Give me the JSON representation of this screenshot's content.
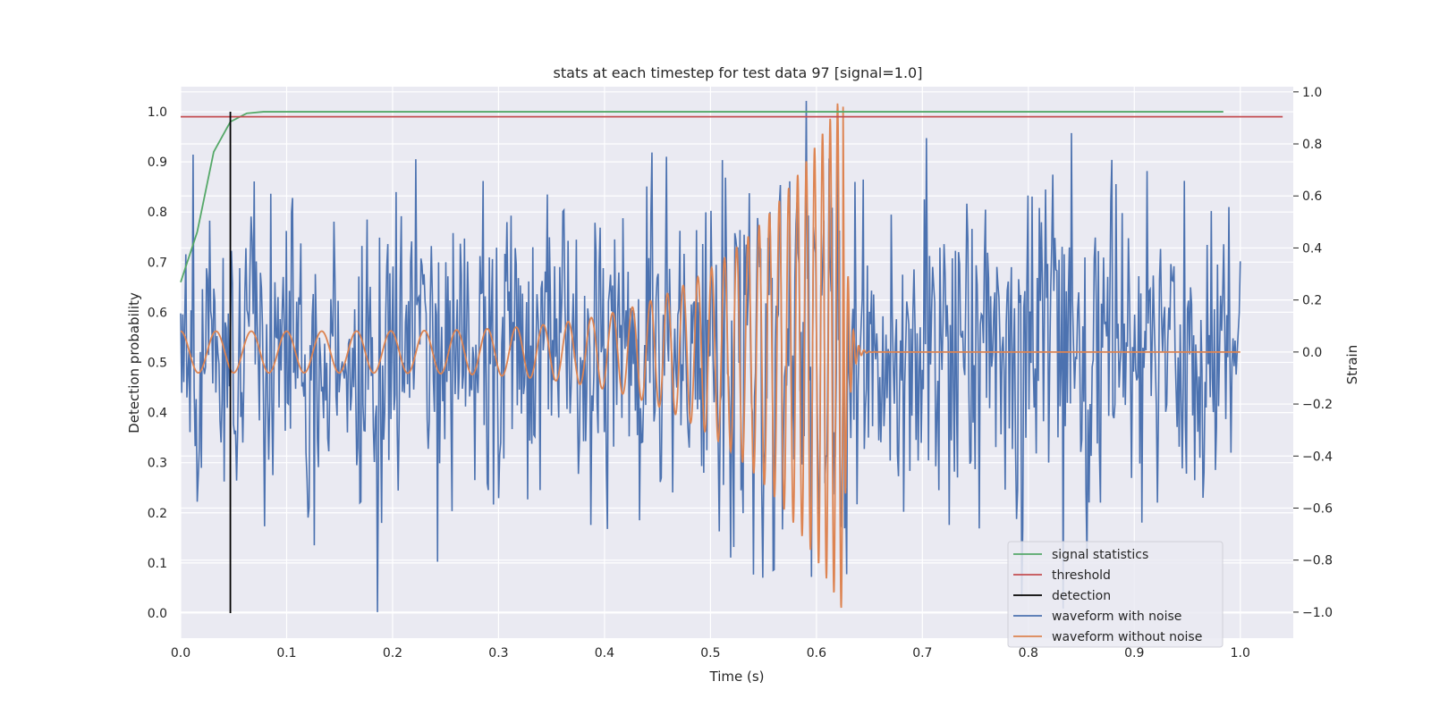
{
  "chart_data": {
    "type": "line",
    "title": "stats at each timestep for test data 97 [signal=1.0]",
    "xlabel": "Time (s)",
    "ylabel_left": "Detection probability",
    "ylabel_right": "Strain",
    "xlim": [
      0.0,
      1.05
    ],
    "ylim_left": [
      -0.05,
      1.05
    ],
    "ylim_right": [
      -1.1,
      1.02
    ],
    "x_ticks": [
      "0.0",
      "0.1",
      "0.2",
      "0.3",
      "0.4",
      "0.5",
      "0.6",
      "0.7",
      "0.8",
      "0.9",
      "1.0"
    ],
    "y_left_ticks": [
      "0.0",
      "0.1",
      "0.2",
      "0.3",
      "0.4",
      "0.5",
      "0.6",
      "0.7",
      "0.8",
      "0.9",
      "1.0"
    ],
    "y_right_ticks": [
      "−1.0",
      "−0.8",
      "−0.6",
      "−0.4",
      "−0.2",
      "0.0",
      "0.2",
      "0.4",
      "0.6",
      "0.8",
      "1.0"
    ],
    "grid": true,
    "legend_position": "lower-right",
    "series": [
      {
        "name": "signal statistics",
        "axis": "left",
        "color": "#55a868",
        "x": [
          0.0,
          0.0156,
          0.0312,
          0.0469,
          0.0625,
          0.0781,
          0.0938,
          0.2,
          0.4,
          0.6,
          0.8,
          0.984
        ],
        "y": [
          0.66,
          0.76,
          0.92,
          0.98,
          0.997,
          1.0,
          1.0,
          1.0,
          1.0,
          1.0,
          1.0,
          1.0
        ]
      },
      {
        "name": "threshold",
        "axis": "left",
        "color": "#c44e52",
        "x": [
          0.0,
          1.04
        ],
        "y": [
          0.99,
          0.99
        ]
      },
      {
        "name": "detection",
        "axis": "left",
        "color": "#000000",
        "x": [
          0.0469,
          0.0469
        ],
        "y": [
          0.0,
          1.0
        ]
      },
      {
        "name": "waveform with noise",
        "axis": "right",
        "color": "#4c72b0",
        "x_range": [
          0.0,
          1.0
        ],
        "amplitude": 0.3,
        "samples": 1024
      },
      {
        "name": "waveform without noise",
        "axis": "right",
        "color": "#dd8452",
        "x_range": [
          0.0,
          1.0
        ],
        "merger_time": 0.625,
        "peak_amplitude": 1.0,
        "start_amplitude": 0.08,
        "start_frequency": 30,
        "merger_frequency": 150
      }
    ]
  }
}
